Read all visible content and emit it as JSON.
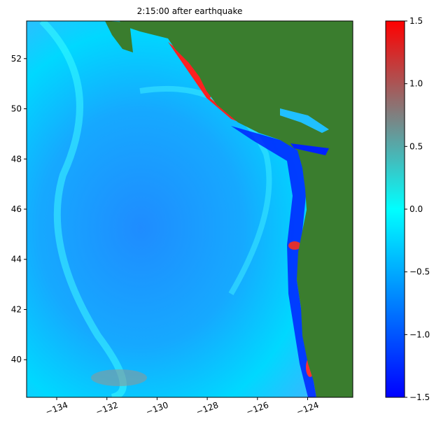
{
  "chart_data": {
    "type": "heatmap",
    "title": "2:15:00 after earthquake",
    "xlim": [
      -135.2,
      -122.2
    ],
    "xticks": [
      {
        "value": -134,
        "label": "−134"
      },
      {
        "value": -132,
        "label": "−132"
      },
      {
        "value": -130,
        "label": "−130"
      },
      {
        "value": -128,
        "label": "−128"
      },
      {
        "value": -126,
        "label": "−126"
      },
      {
        "value": -124,
        "label": "−124"
      }
    ],
    "ylim": [
      38.5,
      53.5
    ],
    "yticks": [
      40,
      42,
      44,
      46,
      48,
      50,
      52
    ],
    "colorbar_lim": [
      -1.5,
      1.5
    ],
    "colorbar_ticks": [
      {
        "value": -1.5,
        "label": "−1.5"
      },
      {
        "value": -1.0,
        "label": "−1.0"
      },
      {
        "value": -0.5,
        "label": "−0.5"
      },
      {
        "value": 0.0,
        "label": "0.0"
      },
      0.5,
      {
        "value": 1.0,
        "label": "1.0"
      },
      1.5
    ]
  }
}
